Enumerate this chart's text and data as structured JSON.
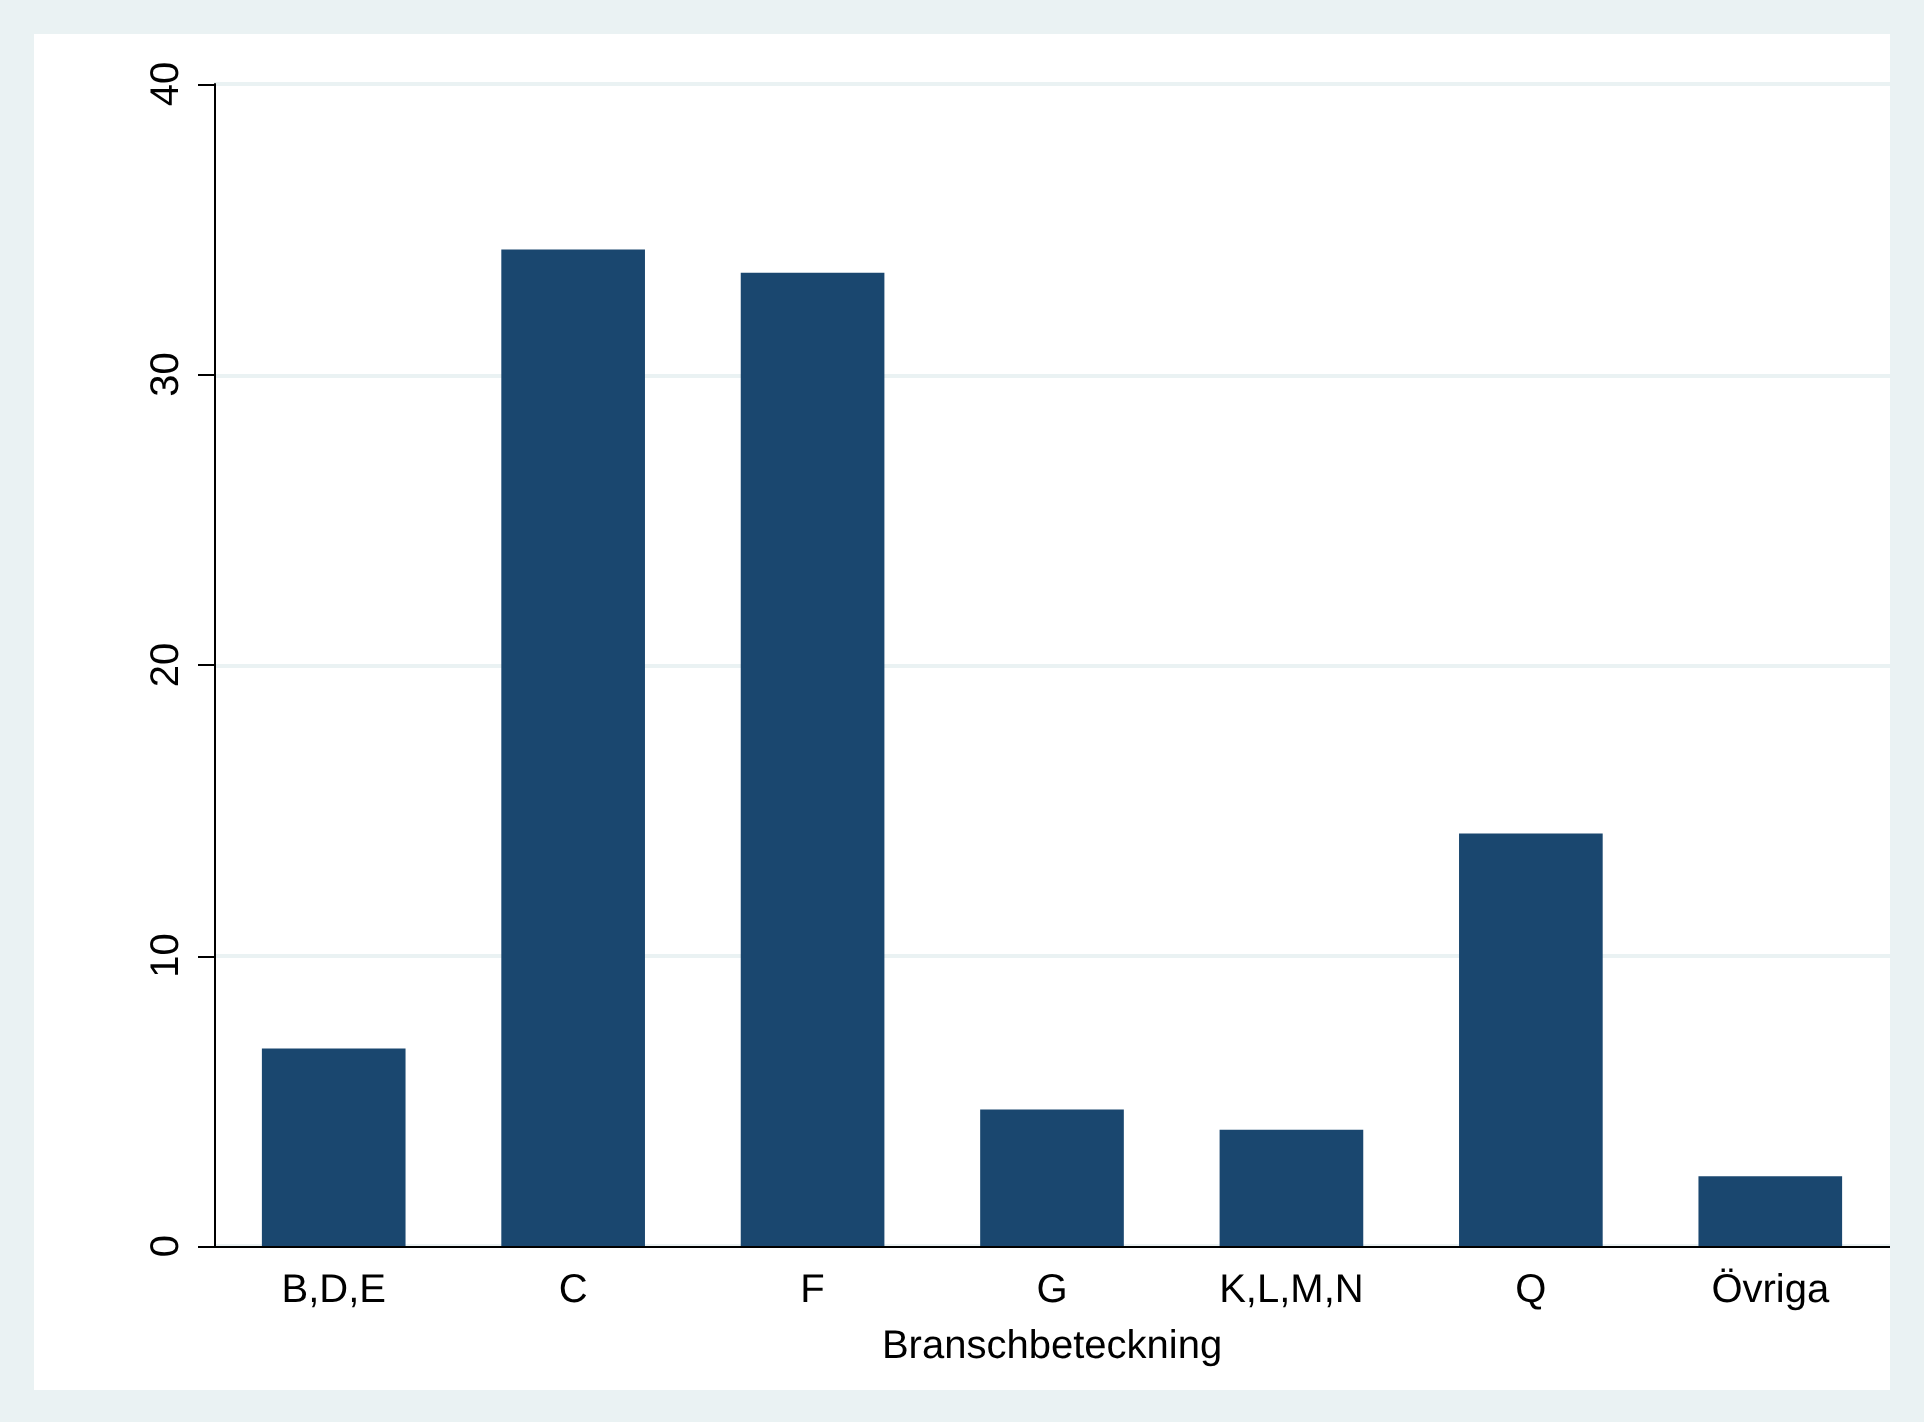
{
  "chart_data": {
    "type": "bar",
    "xlabel": "Branschbeteckning",
    "categories": [
      "B,D,E",
      "C",
      "F",
      "G",
      "K,L,M,N",
      "Q",
      "Övriga"
    ],
    "values": [
      6.8,
      34.3,
      33.5,
      4.7,
      4.0,
      14.2,
      2.4
    ],
    "color": "#1a476f",
    "ylim": [
      0,
      40
    ],
    "yticks": [
      0,
      10,
      20,
      30,
      40
    ],
    "grid": "y"
  }
}
